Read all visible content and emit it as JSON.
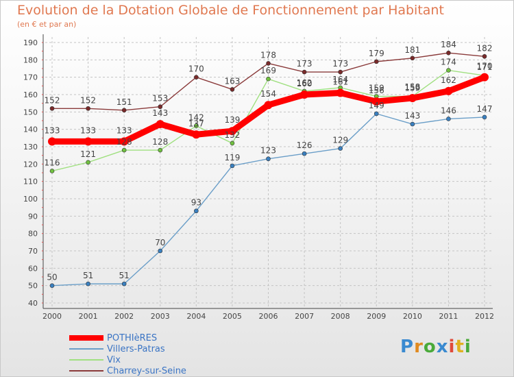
{
  "chart_data": {
    "type": "line",
    "title": "Evolution de la Dotation Globale de Fonctionnement par Habitant",
    "subtitle": "(en € et par an)",
    "xlabel": "",
    "ylabel": "",
    "ylim": [
      40,
      190
    ],
    "yticks": [
      40,
      50,
      60,
      70,
      80,
      90,
      100,
      110,
      120,
      130,
      140,
      150,
      160,
      170,
      180,
      190
    ],
    "categories": [
      "2000",
      "2001",
      "2002",
      "2003",
      "2004",
      "2005",
      "2006",
      "2007",
      "2008",
      "2009",
      "2010",
      "2011",
      "2012"
    ],
    "grid": true,
    "legend_position": "bottom-left",
    "series": [
      {
        "name": "Villers-Patras",
        "color": "#6a9ec8",
        "marker": "#3a80c0",
        "values": [
          50,
          51,
          51,
          70,
          93,
          119,
          123,
          126,
          129,
          149,
          143,
          146,
          147
        ]
      },
      {
        "name": "Vix",
        "color": "#a0e080",
        "marker": "#70c040",
        "values": [
          116,
          121,
          128,
          128,
          142,
          132,
          169,
          162,
          164,
          159,
          159,
          174,
          171
        ]
      },
      {
        "name": "Charrey-sur-Seine",
        "color": "#8a3a3a",
        "marker": "#7a2a2a",
        "values": [
          152,
          152,
          151,
          153,
          170,
          163,
          178,
          173,
          173,
          179,
          181,
          184,
          182
        ]
      },
      {
        "name": "POTHIèRES",
        "color": "#ff0000",
        "marker": "#ff0000",
        "values": [
          133,
          133,
          133,
          143,
          137,
          139,
          154,
          160,
          161,
          156,
          158,
          162,
          170
        ]
      }
    ]
  },
  "legend": {
    "items": [
      {
        "label": "POTHIèRES",
        "color": "#ff0000"
      },
      {
        "label": "Villers-Patras",
        "color": "#6a9ec8"
      },
      {
        "label": "Vix",
        "color": "#a0e080"
      },
      {
        "label": "Charrey-sur-Seine",
        "color": "#8a3a3a"
      }
    ]
  },
  "brand": {
    "letters": [
      "P",
      "r",
      "o",
      "x",
      "i",
      "t",
      "i"
    ],
    "colors": [
      "#3a8ad0",
      "#e08a20",
      "#4aaa3a",
      "#3a8ad0",
      "#e04a3a",
      "#e0b020",
      "#4aaa3a"
    ]
  }
}
